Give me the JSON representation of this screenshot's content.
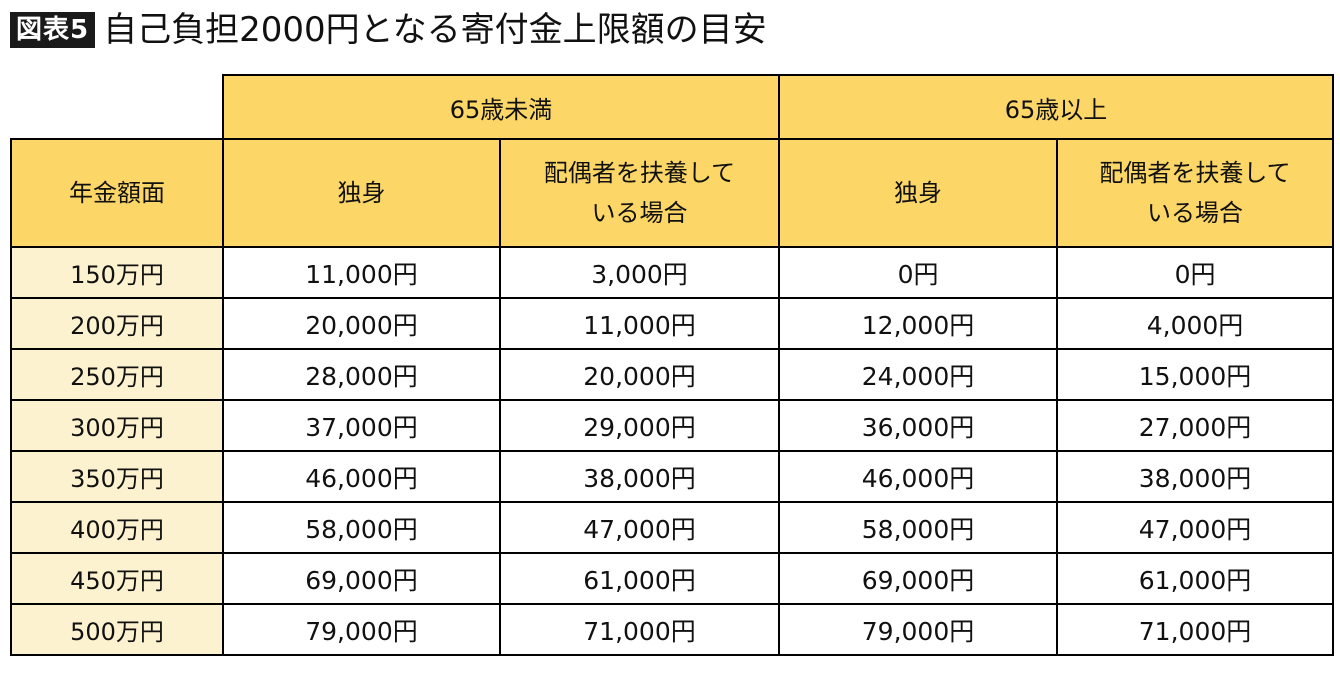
{
  "title": {
    "badge": "図表5",
    "text": "自己負担2000円となる寄付金上限額の目安"
  },
  "table": {
    "group_headers": [
      "65歳未満",
      "65歳以上"
    ],
    "row_header_label": "年金額面",
    "sub_headers": [
      "独身",
      "配偶者を扶養している場合",
      "独身",
      "配偶者を扶養している場合"
    ],
    "sub_headers_lines": [
      [
        "独身"
      ],
      [
        "配偶者を扶養して",
        "いる場合"
      ],
      [
        "独身"
      ],
      [
        "配偶者を扶養して",
        "いる場合"
      ]
    ],
    "rows": [
      {
        "label": "150万円",
        "values": [
          "11,000円",
          "3,000円",
          "0円",
          "0円"
        ]
      },
      {
        "label": "200万円",
        "values": [
          "20,000円",
          "11,000円",
          "12,000円",
          "4,000円"
        ]
      },
      {
        "label": "250万円",
        "values": [
          "28,000円",
          "20,000円",
          "24,000円",
          "15,000円"
        ]
      },
      {
        "label": "300万円",
        "values": [
          "37,000円",
          "29,000円",
          "36,000円",
          "27,000円"
        ]
      },
      {
        "label": "350万円",
        "values": [
          "46,000円",
          "38,000円",
          "46,000円",
          "38,000円"
        ]
      },
      {
        "label": "400万円",
        "values": [
          "58,000円",
          "47,000円",
          "58,000円",
          "47,000円"
        ]
      },
      {
        "label": "450万円",
        "values": [
          "69,000円",
          "61,000円",
          "69,000円",
          "61,000円"
        ]
      },
      {
        "label": "500万円",
        "values": [
          "79,000円",
          "71,000円",
          "79,000円",
          "71,000円"
        ]
      }
    ]
  },
  "colors": {
    "header_yellow": "#fcd666",
    "row_label_cream": "#fdf2d0",
    "badge_black": "#1a1a1a"
  }
}
